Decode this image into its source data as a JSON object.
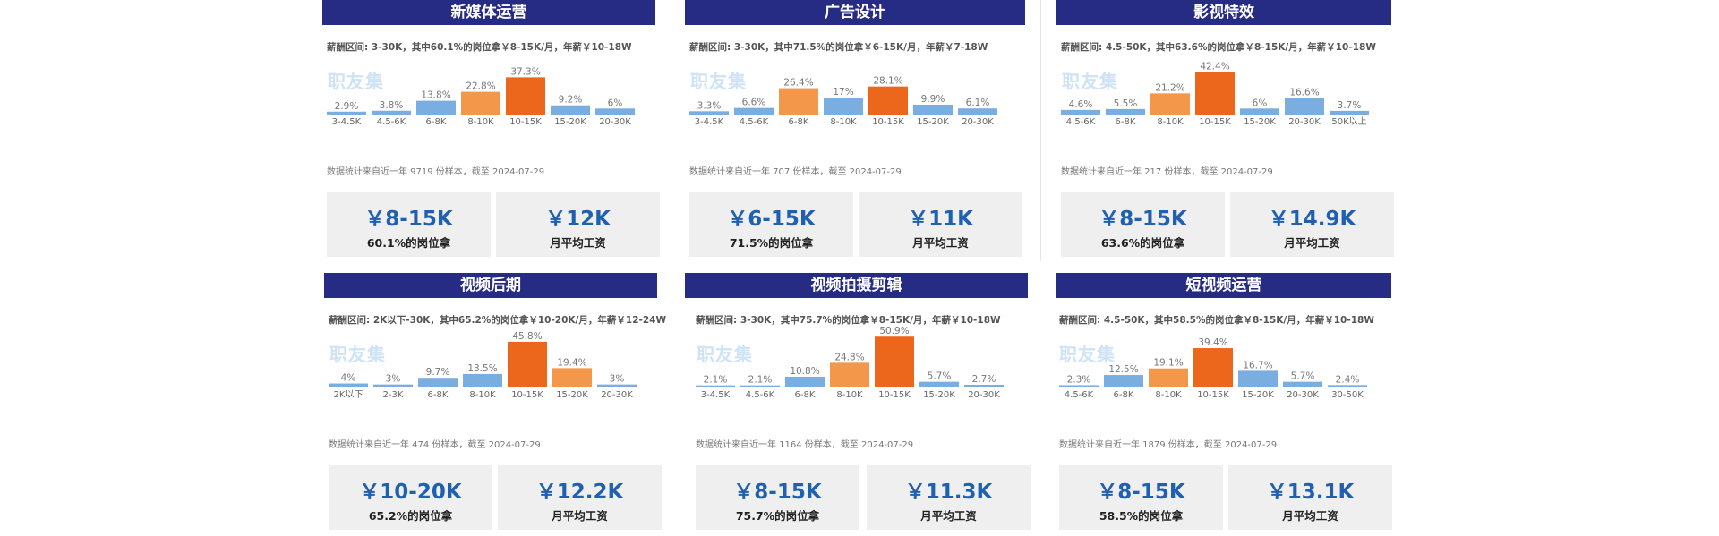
{
  "colors": {
    "bar_blue": "#7aaee0",
    "bar_light_orange": "#f3984a",
    "bar_dark_orange": "#ec661c",
    "title_bg": "#262c84",
    "value_blue": "#2060b0"
  },
  "panels": [
    {
      "title": "新媒体运营",
      "salary_range": "薪酬区间: 3-30K，其中60.1%的岗位拿￥8-15K/月，年薪￥10-18W",
      "watermark": "职友集",
      "source": "数据统计来自近一年 9719 份样本，截至 2024-07-29",
      "avg_value": "￥8-15K",
      "avg_label": "60.1%的岗位拿",
      "monthly_value": "￥12K",
      "monthly_label": "月平均工资",
      "chart_data": {
        "type": "bar",
        "categories": [
          "3-4.5K",
          "4.5-6K",
          "6-8K",
          "8-10K",
          "10-15K",
          "15-20K",
          "20-30K"
        ],
        "values": [
          2.9,
          3.8,
          13.8,
          22.8,
          37.3,
          9.2,
          6
        ],
        "labels": [
          "2.9%",
          "3.8%",
          "13.8%",
          "22.8%",
          "37.3%",
          "9.2%",
          "6%"
        ],
        "colors": [
          "blue",
          "blue",
          "blue",
          "light_orange",
          "dark_orange",
          "blue",
          "blue"
        ]
      }
    },
    {
      "title": "广告设计",
      "salary_range": "薪酬区间: 3-30K，其中71.5%的岗位拿￥6-15K/月，年薪￥7-18W",
      "watermark": "职友集",
      "source": "数据统计来自近一年 707 份样本，截至 2024-07-29",
      "avg_value": "￥6-15K",
      "avg_label": "71.5%的岗位拿",
      "monthly_value": "￥11K",
      "monthly_label": "月平均工资",
      "chart_data": {
        "type": "bar",
        "categories": [
          "3-4.5K",
          "4.5-6K",
          "6-8K",
          "8-10K",
          "10-15K",
          "15-20K",
          "20-30K"
        ],
        "values": [
          3.3,
          6.6,
          26.4,
          17,
          28.1,
          9.9,
          6.1
        ],
        "labels": [
          "3.3%",
          "6.6%",
          "26.4%",
          "17%",
          "28.1%",
          "9.9%",
          "6.1%"
        ],
        "colors": [
          "blue",
          "blue",
          "light_orange",
          "blue",
          "dark_orange",
          "blue",
          "blue"
        ]
      }
    },
    {
      "title": "影视特效",
      "salary_range": "薪酬区间: 4.5-50K，其中63.6%的岗位拿￥8-15K/月，年薪￥10-18W",
      "watermark": "职友集",
      "source": "数据统计来自近一年 217 份样本，截至 2024-07-29",
      "avg_value": "￥8-15K",
      "avg_label": "63.6%的岗位拿",
      "monthly_value": "￥14.9K",
      "monthly_label": "月平均工资",
      "chart_data": {
        "type": "bar",
        "categories": [
          "4.5-6K",
          "6-8K",
          "8-10K",
          "10-15K",
          "15-20K",
          "20-30K",
          "50K以上"
        ],
        "values": [
          4.6,
          5.5,
          21.2,
          42.4,
          6,
          16.6,
          3.7
        ],
        "labels": [
          "4.6%",
          "5.5%",
          "21.2%",
          "42.4%",
          "6%",
          "16.6%",
          "3.7%"
        ],
        "colors": [
          "blue",
          "blue",
          "light_orange",
          "dark_orange",
          "blue",
          "blue",
          "blue"
        ]
      }
    },
    {
      "title": "视频后期",
      "salary_range": "薪酬区间: 2K以下-30K，其中65.2%的岗位拿￥10-20K/月，年薪￥12-24W",
      "watermark": "职友集",
      "source": "数据统计来自近一年 474 份样本，截至 2024-07-29",
      "avg_value": "￥10-20K",
      "avg_label": "65.2%的岗位拿",
      "monthly_value": "￥12.2K",
      "monthly_label": "月平均工资",
      "chart_data": {
        "type": "bar",
        "categories": [
          "2K以下",
          "2-3K",
          "6-8K",
          "8-10K",
          "10-15K",
          "15-20K",
          "20-30K"
        ],
        "values": [
          4,
          3,
          9.7,
          13.5,
          45.8,
          19.4,
          3
        ],
        "labels": [
          "4%",
          "3%",
          "9.7%",
          "13.5%",
          "45.8%",
          "19.4%",
          "3%"
        ],
        "colors": [
          "blue",
          "blue",
          "blue",
          "blue",
          "dark_orange",
          "light_orange",
          "blue"
        ]
      }
    },
    {
      "title": "视频拍摄剪辑",
      "salary_range": "薪酬区间: 3-30K，其中75.7%的岗位拿￥8-15K/月，年薪￥10-18W",
      "watermark": "职友集",
      "source": "数据统计来自近一年 1164 份样本，截至 2024-07-29",
      "avg_value": "￥8-15K",
      "avg_label": "75.7%的岗位拿",
      "monthly_value": "￥11.3K",
      "monthly_label": "月平均工资",
      "chart_data": {
        "type": "bar",
        "categories": [
          "3-4.5K",
          "4.5-6K",
          "6-8K",
          "8-10K",
          "10-15K",
          "15-20K",
          "20-30K"
        ],
        "values": [
          2.1,
          2.1,
          10.8,
          24.8,
          50.9,
          5.7,
          2.7
        ],
        "labels": [
          "2.1%",
          "2.1%",
          "10.8%",
          "24.8%",
          "50.9%",
          "5.7%",
          "2.7%"
        ],
        "colors": [
          "blue",
          "blue",
          "blue",
          "light_orange",
          "dark_orange",
          "blue",
          "blue"
        ]
      }
    },
    {
      "title": "短视频运营",
      "salary_range": "薪酬区间: 4.5-50K，其中58.5%的岗位拿￥8-15K/月，年薪￥10-18W",
      "watermark": "职友集",
      "source": "数据统计来自近一年 1879 份样本，截至 2024-07-29",
      "avg_value": "￥8-15K",
      "avg_label": "58.5%的岗位拿",
      "monthly_value": "￥13.1K",
      "monthly_label": "月平均工资",
      "chart_data": {
        "type": "bar",
        "categories": [
          "4.5-6K",
          "6-8K",
          "8-10K",
          "10-15K",
          "15-20K",
          "20-30K",
          "30-50K"
        ],
        "values": [
          2.3,
          12.5,
          19.1,
          39.4,
          16.7,
          5.7,
          2.4
        ],
        "labels": [
          "2.3%",
          "12.5%",
          "19.1%",
          "39.4%",
          "16.7%",
          "5.7%",
          "2.4%"
        ],
        "colors": [
          "blue",
          "blue",
          "light_orange",
          "dark_orange",
          "blue",
          "blue",
          "blue"
        ]
      }
    }
  ]
}
